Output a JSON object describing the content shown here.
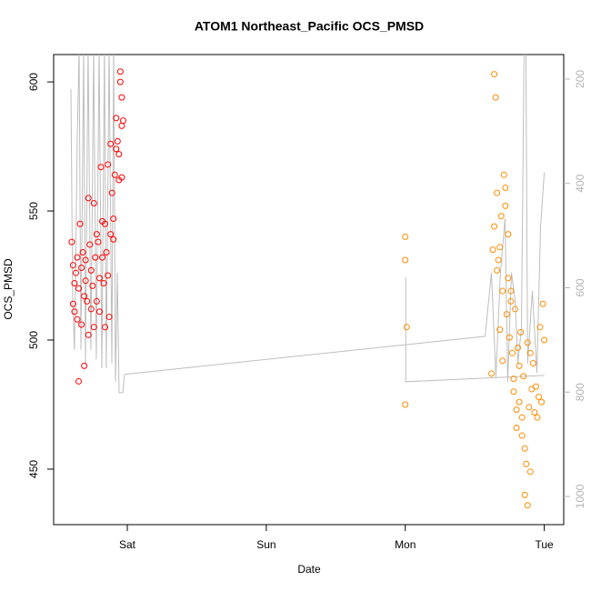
{
  "chart_data": {
    "type": "scatter",
    "title": "ATOM1 Northeast_Pacific OCS_PMSD",
    "x_label": "Date",
    "y_label": "OCS_PMSD",
    "xlim": [
      -0.53,
      3.14
    ],
    "xticks": [
      {
        "value": 0,
        "label": "Sat"
      },
      {
        "value": 1,
        "label": "Sun"
      },
      {
        "value": 2,
        "label": "Mon"
      },
      {
        "value": 3,
        "label": "Tue"
      }
    ],
    "ylim": [
      428.5,
      610.6
    ],
    "yticks": [
      450,
      500,
      550,
      600
    ],
    "y2lim": [
      1054,
      153
    ],
    "y2ticks": [
      200,
      400,
      600,
      800,
      1000
    ],
    "series": [
      {
        "kind": "points",
        "color": "#ff0000",
        "x": [
          -0.4,
          -0.39,
          -0.39,
          -0.38,
          -0.38,
          -0.37,
          -0.36,
          -0.36,
          -0.35,
          -0.35,
          -0.34,
          -0.33,
          -0.33,
          -0.32,
          -0.31,
          -0.31,
          -0.3,
          -0.3,
          -0.29,
          -0.28,
          -0.28,
          -0.27,
          -0.26,
          -0.26,
          -0.25,
          -0.24,
          -0.24,
          -0.23,
          -0.22,
          -0.22,
          -0.21,
          -0.2,
          -0.2,
          -0.19,
          -0.18,
          -0.18,
          -0.17,
          -0.16,
          -0.16,
          -0.15,
          -0.14,
          -0.14,
          -0.13,
          -0.12,
          -0.12,
          -0.11,
          -0.1,
          -0.1,
          -0.09,
          -0.08,
          -0.08,
          -0.07,
          -0.06,
          -0.06,
          -0.05,
          -0.05,
          -0.04,
          -0.04,
          -0.04,
          -0.03
        ],
        "values": [
          538,
          529,
          514,
          522,
          511,
          526,
          532,
          508,
          484,
          520,
          545,
          528,
          506,
          534,
          490,
          517,
          531,
          523,
          515,
          502,
          555,
          537,
          512,
          527,
          521,
          505,
          553,
          532,
          515,
          541,
          538,
          524,
          511,
          567,
          546,
          532,
          522,
          545,
          505,
          534,
          568,
          525,
          509,
          576,
          541,
          557,
          547,
          539,
          564,
          574,
          586,
          577,
          572,
          562,
          604,
          600,
          594,
          583,
          563,
          585
        ]
      },
      {
        "kind": "points",
        "color": "#ff8c00",
        "x": [
          2.0,
          2.0,
          2.01,
          2.0,
          2.62,
          2.63,
          2.64,
          2.64,
          2.65,
          2.66,
          2.66,
          2.67,
          2.68,
          2.68,
          2.69,
          2.7,
          2.7,
          2.71,
          2.72,
          2.72,
          2.73,
          2.74,
          2.74,
          2.75,
          2.76,
          2.76,
          2.77,
          2.78,
          2.78,
          2.79,
          2.8,
          2.8,
          2.81,
          2.82,
          2.82,
          2.83,
          2.84,
          2.84,
          2.85,
          2.86,
          2.86,
          2.87,
          2.88,
          2.88,
          2.89,
          2.9,
          2.9,
          2.91,
          2.92,
          2.93,
          2.94,
          2.95,
          2.96,
          2.97,
          2.98,
          2.99,
          3.0
        ],
        "values": [
          540,
          531,
          505,
          475,
          487,
          535,
          544,
          603,
          594,
          557,
          527,
          531,
          504,
          536,
          548,
          519,
          492,
          564,
          552,
          559,
          510,
          524,
          541,
          501,
          519,
          515,
          495,
          480,
          485,
          512,
          473,
          466,
          497,
          490,
          476,
          503,
          470,
          463,
          486,
          440,
          458,
          452,
          499,
          436,
          474,
          449,
          495,
          481,
          491,
          472,
          482,
          470,
          478,
          505,
          476,
          514,
          500
        ]
      },
      {
        "kind": "line",
        "color": "#bebebe",
        "axis": "y2",
        "x": [
          -0.406,
          -0.393,
          -0.38,
          -0.36,
          -0.347,
          -0.334,
          -0.314,
          -0.301,
          -0.282,
          -0.262,
          -0.242,
          -0.223,
          -0.203,
          -0.183,
          -0.164,
          -0.151,
          -0.131,
          -0.111,
          -0.098,
          -0.085,
          -0.072,
          -0.059,
          -0.033,
          -0.02,
          2.574,
          2.62,
          2.652,
          2.685,
          2.718,
          2.737,
          2.764,
          2.79,
          2.81,
          2.836,
          2.855,
          2.868,
          2.88,
          2.914,
          2.947,
          2.973,
          3.0,
          3.0,
          2.004,
          2.004,
          3.0
        ],
        "values": [
          219,
          623,
          719,
          310,
          140,
          719,
          140,
          745,
          140,
          719,
          140,
          737,
          140,
          754,
          140,
          754,
          140,
          745,
          140,
          780,
          571,
          801,
          801,
          766,
          693,
          571,
          771,
          571,
          467,
          780,
          571,
          623,
          745,
          676,
          140,
          140,
          745,
          606,
          763,
          484,
          379,
          null,
          580,
          780,
          768
        ]
      }
    ]
  }
}
